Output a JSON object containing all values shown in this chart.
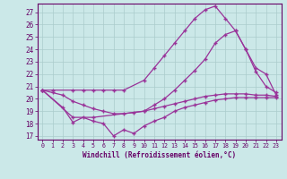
{
  "background_color": "#cbe8e8",
  "grid_color": "#aacccc",
  "line_color": "#993399",
  "xlabel": "Windchill (Refroidissement éolien,°C)",
  "xlabel_color": "#660066",
  "tick_color": "#660066",
  "xlim": [
    -0.5,
    23.5
  ],
  "ylim": [
    16.7,
    27.7
  ],
  "yticks": [
    17,
    18,
    19,
    20,
    21,
    22,
    23,
    24,
    25,
    26,
    27
  ],
  "xticks": [
    0,
    1,
    2,
    3,
    4,
    5,
    6,
    7,
    8,
    9,
    10,
    11,
    12,
    13,
    14,
    15,
    16,
    17,
    18,
    19,
    20,
    21,
    22,
    23
  ],
  "lines": [
    {
      "x": [
        0,
        1,
        3,
        4,
        5,
        6,
        7,
        8,
        10,
        11,
        12,
        13,
        14,
        15,
        16,
        17,
        18,
        19,
        20,
        21,
        22,
        23
      ],
      "y": [
        20.7,
        20.7,
        20.7,
        20.7,
        20.7,
        20.7,
        20.7,
        20.7,
        21.5,
        22.5,
        23.5,
        24.5,
        25.5,
        26.5,
        27.2,
        27.5,
        26.5,
        25.5,
        24.0,
        22.2,
        21.0,
        20.5
      ]
    },
    {
      "x": [
        0,
        3,
        5,
        10,
        11,
        12,
        13,
        14,
        15,
        16,
        17,
        18,
        19,
        20,
        21,
        22,
        23
      ],
      "y": [
        20.7,
        18.5,
        18.5,
        19.0,
        19.5,
        20.0,
        20.7,
        21.5,
        22.3,
        23.2,
        24.5,
        25.2,
        25.5,
        24.0,
        22.5,
        22.0,
        20.3
      ]
    },
    {
      "x": [
        0,
        1,
        2,
        3,
        4,
        5,
        6,
        7,
        8,
        9,
        10,
        11,
        12,
        13,
        14,
        15,
        16,
        17,
        18,
        19,
        20,
        21,
        22,
        23
      ],
      "y": [
        20.7,
        20.5,
        20.3,
        19.8,
        19.5,
        19.2,
        19.0,
        18.8,
        18.8,
        18.9,
        19.0,
        19.2,
        19.4,
        19.6,
        19.8,
        20.0,
        20.2,
        20.3,
        20.4,
        20.4,
        20.4,
        20.3,
        20.3,
        20.2
      ]
    },
    {
      "x": [
        0,
        2,
        3,
        4,
        5,
        6,
        7,
        8,
        9,
        10,
        11,
        12,
        13,
        14,
        15,
        16,
        17,
        18,
        19,
        20,
        21,
        22,
        23
      ],
      "y": [
        20.7,
        19.3,
        18.1,
        18.5,
        18.2,
        18.0,
        17.0,
        17.5,
        17.2,
        17.8,
        18.2,
        18.5,
        19.0,
        19.3,
        19.5,
        19.7,
        19.9,
        20.0,
        20.1,
        20.1,
        20.1,
        20.1,
        20.1
      ]
    }
  ]
}
